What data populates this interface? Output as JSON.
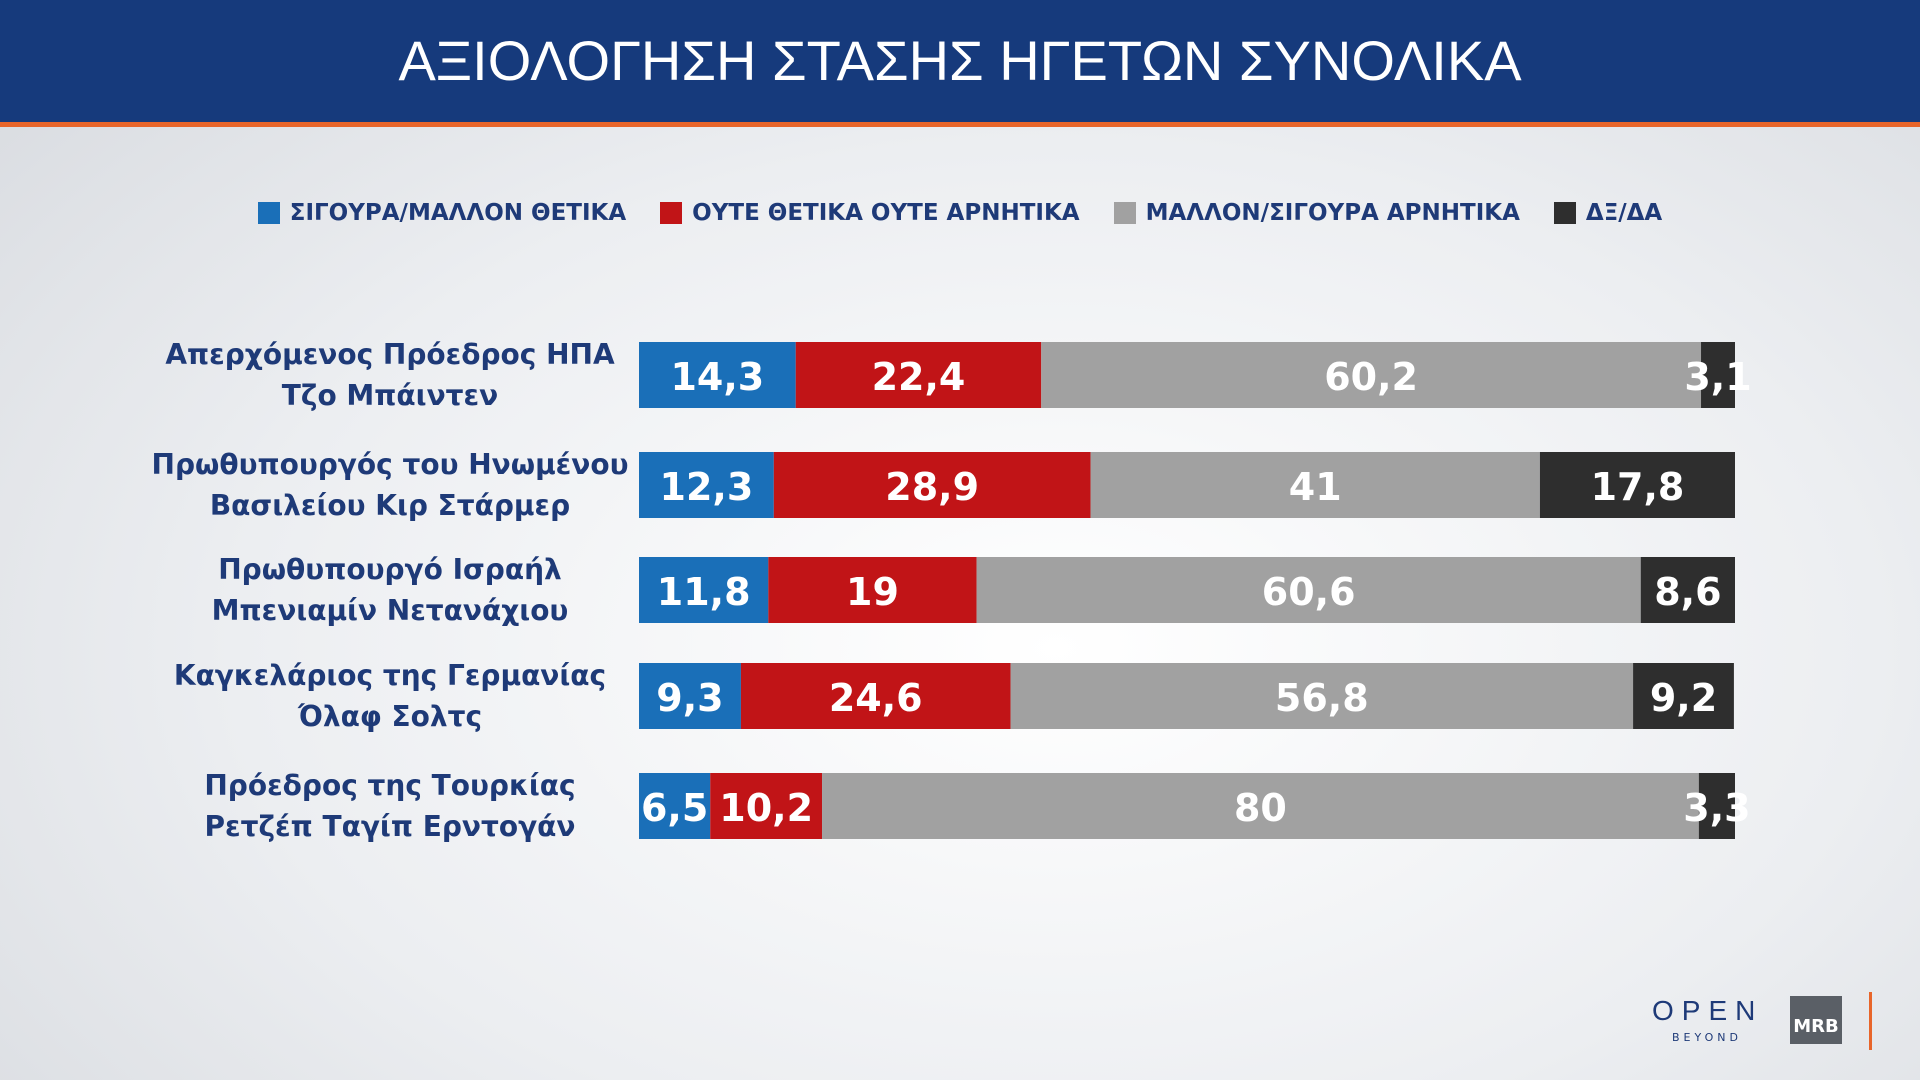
{
  "chart_data": {
    "type": "stacked-barh",
    "title": "ΑΞΙΟΛΟΓΗΣΗ ΣΤΑΣΗΣ ΗΓΕΤΩΝ ΣΥΝΟΛΙΚΑ",
    "categories": [
      "Απερχόμενος Πρόεδρος ΗΠΑ\nΤζο Μπάιντεν",
      "Πρωθυπουργός του Ηνωμένου\nΒασιλείου Κιρ Στάρμερ",
      "Πρωθυπουργό Ισραήλ\nΜπενιαμίν Νετανάχιου",
      "Καγκελάριος της Γερμανίας\nΌλαφ Σολτς",
      "Πρόεδρος της Τουρκίας\nΡετζέπ Ταγίπ Ερντογάν"
    ],
    "xlim": [
      0,
      100
    ],
    "series": [
      {
        "name": "ΣΙΓΟΥΡΑ/ΜΑΛΛΟΝ ΘΕΤΙΚΑ",
        "color": "#1a6fb8",
        "values": [
          14.3,
          12.3,
          11.8,
          9.3,
          6.5
        ],
        "value_labels": [
          "14,3",
          "12,3",
          "11,8",
          "9,3",
          "6,5"
        ]
      },
      {
        "name": "ΟΥΤΕ ΘΕΤΙΚΑ ΟΥΤΕ ΑΡΝΗΤΙΚΑ",
        "color": "#c11417",
        "values": [
          22.4,
          28.9,
          19,
          24.6,
          10.2
        ],
        "value_labels": [
          "22,4",
          "28,9",
          "19",
          "24,6",
          "10,2"
        ]
      },
      {
        "name": "ΜΑΛΛΟΝ/ΣΙΓΟΥΡΑ ΑΡΝΗΤΙΚΑ",
        "color": "#a1a1a1",
        "values": [
          60.2,
          41,
          60.6,
          56.8,
          80
        ],
        "value_labels": [
          "60,2",
          "41",
          "60,6",
          "56,8",
          "80"
        ]
      },
      {
        "name": "ΔΞ/ΔΑ",
        "color": "#2e2e2e",
        "values": [
          3.1,
          17.8,
          8.6,
          9.2,
          3.3
        ],
        "value_labels": [
          "3,1",
          "17,8",
          "8,6",
          "9,2",
          "3,3"
        ]
      }
    ]
  },
  "branding": {
    "open": "OPEN",
    "beyond": "BEYOND",
    "mrb": "MRB"
  }
}
